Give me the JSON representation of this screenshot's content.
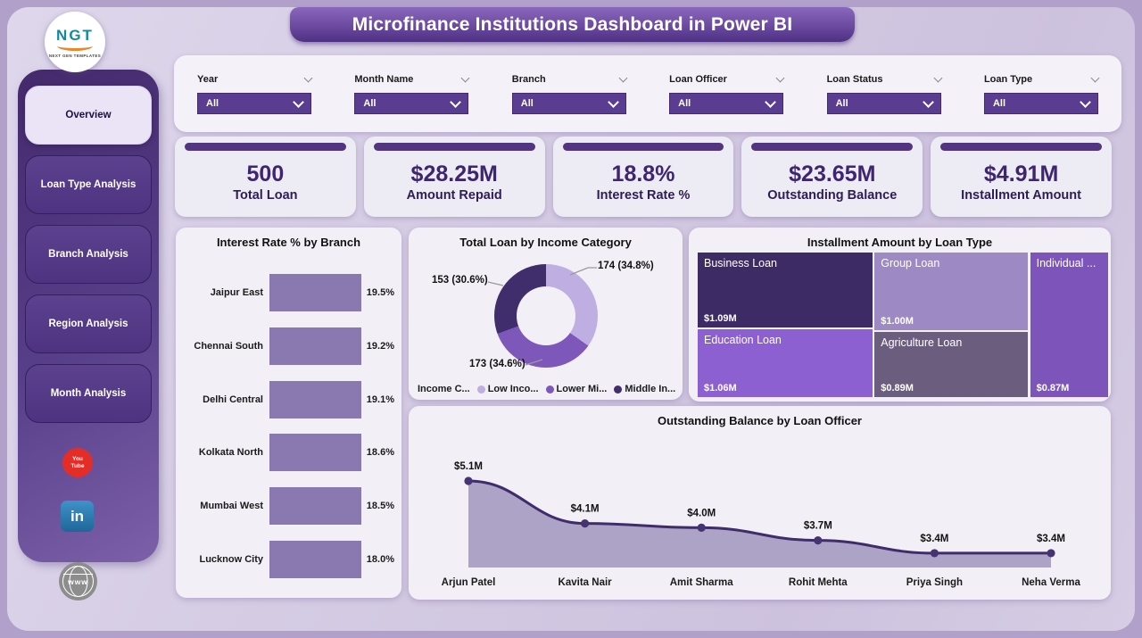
{
  "header": {
    "title": "Microfinance Institutions Dashboard in Power BI"
  },
  "logo": {
    "text": "NGT",
    "subtext": "NEXT GEN TEMPLATES"
  },
  "sidebar": {
    "items": [
      {
        "label": "Overview",
        "active": true
      },
      {
        "label": "Loan Type Analysis",
        "active": false
      },
      {
        "label": "Branch Analysis",
        "active": false
      },
      {
        "label": "Region Analysis",
        "active": false
      },
      {
        "label": "Month Analysis",
        "active": false
      }
    ],
    "social": [
      {
        "name": "youtube-icon",
        "text": "You Tube"
      },
      {
        "name": "linkedin-icon",
        "text": "in"
      },
      {
        "name": "globe-icon",
        "text": "www"
      }
    ]
  },
  "filters": [
    {
      "label": "Year",
      "value": "All"
    },
    {
      "label": "Month Name",
      "value": "All"
    },
    {
      "label": "Branch",
      "value": "All"
    },
    {
      "label": "Loan Officer",
      "value": "All"
    },
    {
      "label": "Loan Status",
      "value": "All"
    },
    {
      "label": "Loan Type",
      "value": "All"
    }
  ],
  "kpis": [
    {
      "value": "500",
      "label": "Total Loan"
    },
    {
      "value": "$28.25M",
      "label": "Amount Repaid"
    },
    {
      "value": "18.8%",
      "label": "Interest Rate %"
    },
    {
      "value": "$23.65M",
      "label": "Outstanding Balance"
    },
    {
      "value": "$4.91M",
      "label": "Installment Amount"
    }
  ],
  "colors": {
    "accent": "#533480",
    "bar": "#8a78b0",
    "line": "#3f2c6b",
    "area": "#a99ec3",
    "donut": [
      "#bfaee2",
      "#7e57ba",
      "#3f2d6c"
    ]
  },
  "chart_data": [
    {
      "type": "bar",
      "orientation": "horizontal",
      "title": "Interest Rate % by Branch",
      "categories": [
        "Jaipur East",
        "Chennai South",
        "Delhi Central",
        "Kolkata North",
        "Mumbai West",
        "Lucknow City"
      ],
      "values": [
        19.5,
        19.2,
        19.1,
        18.6,
        18.5,
        18.0
      ],
      "value_labels": [
        "19.5%",
        "19.2%",
        "19.1%",
        "18.6%",
        "18.5%",
        "18.0%"
      ],
      "xlim": [
        0,
        19.6
      ],
      "bar_color": "#8a78b0"
    },
    {
      "type": "pie",
      "donut": true,
      "title": "Total Loan by Income Category",
      "legend_title": "Income C...",
      "legend_position": "bottom",
      "slices": [
        {
          "label": "Low Inco...",
          "value": 174,
          "pct": 34.8,
          "callout": "174 (34.8%)",
          "color": "#bfaee2"
        },
        {
          "label": "Lower Mi...",
          "value": 173,
          "pct": 34.6,
          "callout": "173 (34.6%)",
          "color": "#7e57ba"
        },
        {
          "label": "Middle In...",
          "value": 153,
          "pct": 30.6,
          "callout": "153 (30.6%)",
          "color": "#3f2d6c"
        }
      ]
    },
    {
      "type": "treemap",
      "title": "Installment Amount by Loan Type",
      "tiles": [
        {
          "name": "Business Loan",
          "value": 1.09,
          "value_label": "$1.09M",
          "color": "#3d2b66"
        },
        {
          "name": "Group Loan",
          "value": 1.0,
          "value_label": "$1.00M",
          "color": "#9d89c4"
        },
        {
          "name": "Individual ...",
          "value": 0.87,
          "value_label": "$0.87M",
          "color": "#7d55ba"
        },
        {
          "name": "Education Loan",
          "value": 1.06,
          "value_label": "$1.06M",
          "color": "#8d60d2"
        },
        {
          "name": "Agriculture Loan",
          "value": 0.89,
          "value_label": "$0.89M",
          "color": "#6a5d7e"
        }
      ]
    },
    {
      "type": "line",
      "area": true,
      "title": "Outstanding Balance by Loan Officer",
      "categories": [
        "Arjun Patel",
        "Kavita Nair",
        "Amit Sharma",
        "Rohit Mehta",
        "Priya Singh",
        "Neha Verma"
      ],
      "values": [
        5.1,
        4.1,
        4.0,
        3.7,
        3.4,
        3.4
      ],
      "value_labels": [
        "$5.1M",
        "$4.1M",
        "$4.0M",
        "$3.7M",
        "$3.4M",
        "$3.4M"
      ],
      "ylim": [
        0,
        5.5
      ],
      "line_color": "#3f2c6b",
      "area_color": "#a99ec3"
    }
  ]
}
